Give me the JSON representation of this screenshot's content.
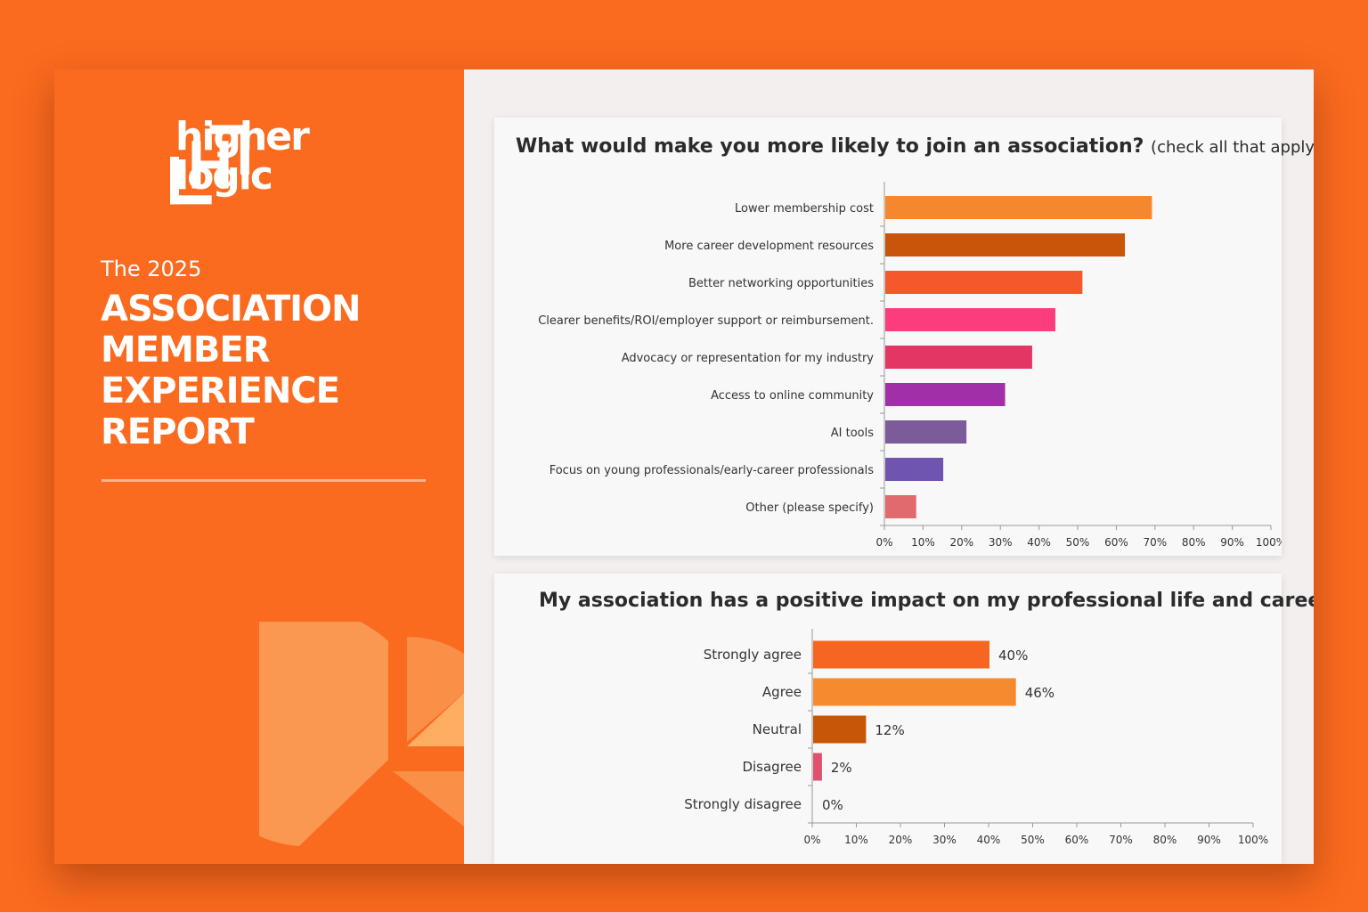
{
  "brand": {
    "name_line1": "higher",
    "name_line2": "logic",
    "colors": {
      "primary_orange": "#fa6a1f",
      "panel_bg": "#f3efee"
    }
  },
  "report": {
    "year_label": "The 2025",
    "title_lines": [
      "ASSOCIATION",
      "MEMBER",
      "EXPERIENCE",
      "REPORT"
    ]
  },
  "chart_data": [
    {
      "type": "bar",
      "orientation": "horizontal",
      "title": "What would make you more likely to join an association?",
      "subtitle": "(check all that apply)",
      "categories": [
        "Lower membership cost",
        "More career development resources",
        "Better networking opportunities",
        "Clearer benefits/ROI/employer support or reimbursement.",
        "Advocacy or representation for my industry",
        "Access to online community",
        "AI tools",
        "Focus on young professionals/early-career professionals",
        "Other (please specify)"
      ],
      "values": [
        69,
        62,
        51,
        44,
        38,
        31,
        21,
        15,
        8
      ],
      "colors": [
        "#f5882f",
        "#c85509",
        "#f5582a",
        "#fb3d7c",
        "#e33665",
        "#a12fa8",
        "#7b5b99",
        "#6f55b0",
        "#e06a6e"
      ],
      "xlim": [
        0,
        100
      ],
      "xticks": [
        "0%",
        "10%",
        "20%",
        "30%",
        "40%",
        "50%",
        "60%",
        "70%",
        "80%",
        "90%",
        "100%"
      ],
      "xlabel": "",
      "ylabel": ""
    },
    {
      "type": "bar",
      "orientation": "horizontal",
      "title": "My association has a positive impact on my professional life and career.",
      "categories": [
        "Strongly agree",
        "Agree",
        "Neutral",
        "Disagree",
        "Strongly disagree"
      ],
      "values": [
        40,
        46,
        12,
        2,
        0
      ],
      "value_labels": [
        "40%",
        "46%",
        "12%",
        "2%",
        "0%"
      ],
      "colors": [
        "#f76620",
        "#f58a2e",
        "#c75608",
        "#e2506e",
        "#e2506e"
      ],
      "xlim": [
        0,
        100
      ],
      "xticks": [
        "0%",
        "10%",
        "20%",
        "30%",
        "40%",
        "50%",
        "60%",
        "70%",
        "80%",
        "90%",
        "100%"
      ],
      "xlabel": "",
      "ylabel": ""
    }
  ]
}
